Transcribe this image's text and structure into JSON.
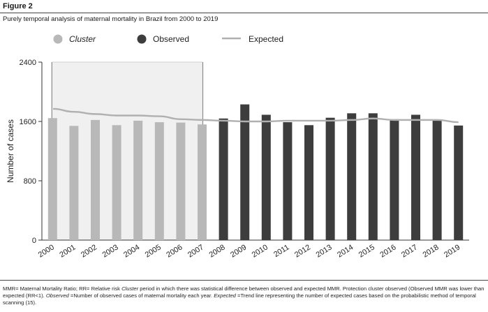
{
  "figure_label": "Figure 2",
  "caption": {
    "mmr_def": "MMR= Maternal Mortality Ratio; RR= Relative risk ",
    "cluster_word": "Cluster",
    "cluster_def": " period in which there was statistical difference between observed and expected MMR. Protection cluster observed (Observed MMR was lower than expected (RR<1). ",
    "observed_word": "Observed",
    "observed_def": " =Number of observed cases of maternal mortality each year. ",
    "expected_word": "Expected",
    "expected_def": " =Trend line representing the number of expected cases based on the probabilistic method of temporal scanning (15)."
  },
  "colors": {
    "cluster_bar": "#b8b8b8",
    "observed_bar": "#3d3d3d",
    "expected_line": "#b0b0b0",
    "cluster_shade": "#f0f0f0"
  },
  "chart_data": {
    "type": "bar",
    "title": "Purely temporal analysis of maternal mortality in Brazil from 2000 to 2019",
    "ylabel": "Number of cases",
    "xlabel": "",
    "ylim": [
      0,
      2400
    ],
    "yticks": [
      0,
      800,
      1600,
      2400
    ],
    "grid": false,
    "legend_position": "top",
    "categories": [
      "2000",
      "2001",
      "2002",
      "2003",
      "2004",
      "2005",
      "2006",
      "2007",
      "2008",
      "2009",
      "2010",
      "2011",
      "2012",
      "2013",
      "2014",
      "2015",
      "2016",
      "2017",
      "2018",
      "2019"
    ],
    "series": [
      {
        "name": "Cluster",
        "values": [
          1645,
          1540,
          1620,
          1550,
          1610,
          1590,
          1585,
          1560,
          null,
          null,
          null,
          null,
          null,
          null,
          null,
          null,
          null,
          null,
          null,
          null
        ]
      },
      {
        "name": "Observed",
        "values": [
          null,
          null,
          null,
          null,
          null,
          null,
          null,
          null,
          1640,
          1830,
          1690,
          1590,
          1550,
          1650,
          1710,
          1710,
          1630,
          1690,
          1615,
          1545
        ]
      },
      {
        "name": "Expected",
        "type": "line",
        "values": [
          1770,
          1730,
          1700,
          1680,
          1680,
          1670,
          1630,
          1620,
          1610,
          1600,
          1600,
          1610,
          1610,
          1610,
          1620,
          1640,
          1620,
          1620,
          1620,
          1590
        ]
      }
    ],
    "cluster_period": [
      "2000",
      "2007"
    ]
  }
}
